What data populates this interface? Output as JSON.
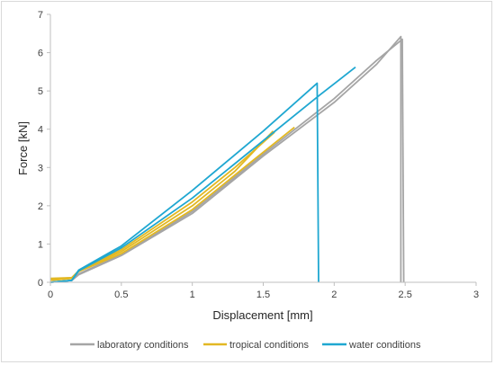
{
  "chart_data": {
    "type": "line",
    "xlabel": "Displacement [mm]",
    "ylabel": "Force [kN]",
    "xlim": [
      0,
      3
    ],
    "ylim": [
      0,
      7
    ],
    "x_ticks": [
      "0",
      "0.5",
      "1",
      "1.5",
      "2",
      "2.5",
      "3"
    ],
    "y_ticks": [
      "0",
      "1",
      "2",
      "3",
      "4",
      "5",
      "6",
      "7"
    ],
    "grid": false,
    "legend_position": "bottom",
    "legend": [
      "laboratory conditions",
      "tropical conditions",
      "water conditions"
    ],
    "series": [
      {
        "name": "laboratory conditions",
        "color": "#a5a5a5",
        "curves": [
          [
            [
              0,
              0
            ],
            [
              0.15,
              0.05
            ],
            [
              0.2,
              0.2
            ],
            [
              0.5,
              0.7
            ],
            [
              1.0,
              1.8
            ],
            [
              1.5,
              3.3
            ],
            [
              2.0,
              4.7
            ],
            [
              2.3,
              5.7
            ],
            [
              2.47,
              6.42
            ],
            [
              2.47,
              0
            ]
          ],
          [
            [
              0,
              0
            ],
            [
              0.15,
              0.05
            ],
            [
              0.2,
              0.22
            ],
            [
              0.5,
              0.72
            ],
            [
              1.0,
              1.85
            ],
            [
              1.5,
              3.35
            ],
            [
              2.0,
              4.8
            ],
            [
              2.3,
              5.8
            ],
            [
              2.48,
              6.35
            ],
            [
              2.49,
              0
            ]
          ]
        ]
      },
      {
        "name": "tropical conditions",
        "color": "#e2b823",
        "curves": [
          [
            [
              0,
              0.05
            ],
            [
              0.15,
              0.1
            ],
            [
              0.2,
              0.3
            ],
            [
              0.5,
              0.8
            ],
            [
              1.0,
              2.0
            ],
            [
              1.3,
              2.9
            ],
            [
              1.57,
              3.95
            ]
          ],
          [
            [
              0,
              0.08
            ],
            [
              0.15,
              0.12
            ],
            [
              0.2,
              0.28
            ],
            [
              0.5,
              0.75
            ],
            [
              1.0,
              1.9
            ],
            [
              1.4,
              3.1
            ],
            [
              1.72,
              4.05
            ]
          ],
          [
            [
              0,
              0.1
            ],
            [
              0.15,
              0.12
            ],
            [
              0.2,
              0.3
            ],
            [
              0.5,
              0.85
            ],
            [
              1.0,
              2.1
            ],
            [
              1.3,
              3.0
            ],
            [
              1.58,
              3.92
            ]
          ]
        ]
      },
      {
        "name": "water conditions",
        "color": "#1fa7d1",
        "curves": [
          [
            [
              0,
              0
            ],
            [
              0.15,
              0.05
            ],
            [
              0.2,
              0.32
            ],
            [
              0.5,
              0.95
            ],
            [
              1.0,
              2.4
            ],
            [
              1.5,
              3.95
            ],
            [
              1.88,
              5.2
            ],
            [
              1.89,
              0
            ]
          ],
          [
            [
              0,
              0
            ],
            [
              0.15,
              0.05
            ],
            [
              0.2,
              0.3
            ],
            [
              0.5,
              0.9
            ],
            [
              1.0,
              2.2
            ],
            [
              1.5,
              3.7
            ],
            [
              1.9,
              4.9
            ],
            [
              2.15,
              5.62
            ]
          ]
        ]
      }
    ]
  }
}
